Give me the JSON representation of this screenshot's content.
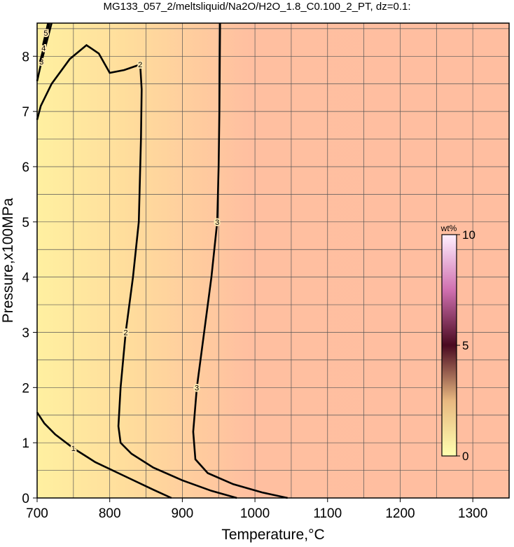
{
  "chart_data": {
    "type": "contour",
    "title": "MG133_057_2/meltsliquid/Na2O/H2O_1.8_C0.100_2_PT, dz=0.1:",
    "x_label": "Temperature,°C",
    "y_label": "Pressure,x100MPa",
    "xlim": [
      700,
      1350
    ],
    "ylim": [
      0,
      8.6
    ],
    "xticks": [
      700,
      800,
      900,
      1000,
      1100,
      1200,
      1300
    ],
    "yticks": [
      0,
      1,
      2,
      3,
      4,
      5,
      6,
      7,
      8
    ],
    "xgrid": [
      750,
      800,
      850,
      900,
      950,
      1000,
      1050,
      1100,
      1150,
      1200,
      1250,
      1300
    ],
    "ygrid": [
      0.5,
      1,
      1.5,
      2,
      2.5,
      3,
      3.5,
      4,
      4.5,
      5,
      5.5,
      6,
      6.5,
      7,
      7.5,
      8,
      8.5
    ],
    "contours": [
      {
        "level": 1,
        "T": [
          700,
          710,
          725,
          750,
          780,
          820,
          860,
          885
        ],
        "P": [
          1.55,
          1.35,
          1.15,
          0.9,
          0.65,
          0.4,
          0.15,
          0
        ]
      },
      {
        "level": 2,
        "T": [
          700,
          705,
          720,
          745,
          768,
          785,
          800,
          820,
          842,
          844,
          843,
          840,
          832,
          822,
          815,
          812,
          815,
          830,
          860,
          900,
          940,
          975
        ],
        "P": [
          6.85,
          7.1,
          7.5,
          7.95,
          8.2,
          8.05,
          7.7,
          7.75,
          7.85,
          7.4,
          6.5,
          5.0,
          4.0,
          3.0,
          2.0,
          1.3,
          1.0,
          0.8,
          0.55,
          0.32,
          0.13,
          0
        ]
      },
      {
        "level": 3,
        "T": [
          952,
          951,
          950,
          948,
          940,
          930,
          920,
          915,
          918,
          935,
          970,
          1010,
          1045
        ],
        "P": [
          8.6,
          7.0,
          6.0,
          5.0,
          4.0,
          3.0,
          2.0,
          1.2,
          0.7,
          0.45,
          0.25,
          0.1,
          0
        ]
      },
      {
        "level": 3,
        "T": [
          700,
          706,
          714,
          720
        ],
        "P": [
          7.55,
          7.9,
          8.3,
          8.6
        ]
      },
      {
        "level": 4,
        "T": [
          704,
          709,
          714,
          717
        ],
        "P": [
          7.9,
          8.15,
          8.4,
          8.6
        ]
      },
      {
        "level": 5,
        "T": [
          708,
          712,
          715
        ],
        "P": [
          8.2,
          8.42,
          8.6
        ]
      }
    ],
    "colorbar": {
      "label": "wt%",
      "lim": [
        0,
        10
      ],
      "ticks": [
        0,
        5,
        10
      ]
    }
  }
}
